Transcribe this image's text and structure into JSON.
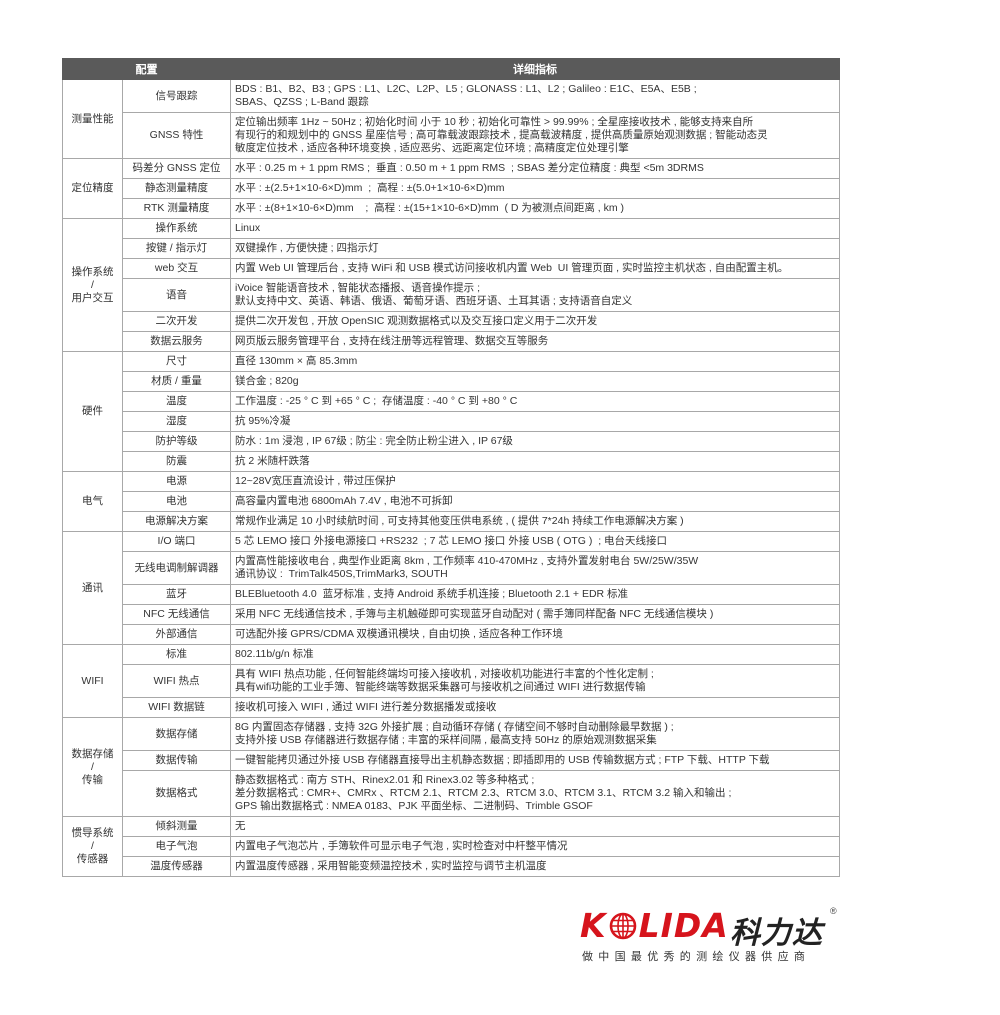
{
  "header": {
    "col_config": "配置",
    "col_detail": "详细指标"
  },
  "groups": [
    {
      "name": "测量性能",
      "rows": [
        {
          "item": "信号跟踪",
          "detail": "BDS : B1、B2、B3 ; GPS : L1、L2C、L2P、L5 ; GLONASS : L1、L2 ; Galileo : E1C、E5A、E5B ;\nSBAS、QZSS ; L-Band 跟踪"
        },
        {
          "item": "GNSS 特性",
          "detail": "定位输出频率 1Hz ~ 50Hz ; 初始化时间 小于 10 秒 ; 初始化可靠性 > 99.99% ; 全星座接收技术 , 能够支持来自所\n有现行的和规划中的 GNSS 星座信号 ; 高可靠载波跟踪技术 , 提高载波精度 , 提供高质量原始观测数据 ; 智能动态灵\n敏度定位技术 , 适应各种环境变换 , 适应恶劣、远距离定位环境 ; 高精度定位处理引擎"
        }
      ]
    },
    {
      "name": "定位精度",
      "rows": [
        {
          "item": "码差分 GNSS 定位",
          "detail": "水平 : 0.25 m + 1 ppm RMS ;  垂直 : 0.50 m + 1 ppm RMS  ; SBAS 差分定位精度 : 典型 <5m 3DRMS"
        },
        {
          "item": "静态测量精度",
          "detail": "水平 : ±(2.5+1×10-6×D)mm  ;  高程 : ±(5.0+1×10-6×D)mm"
        },
        {
          "item": "RTK 测量精度",
          "detail": "水平 : ±(8+1×10-6×D)mm    ;  高程 : ±(15+1×10-6×D)mm  ( D 为被测点间距离 , km )"
        }
      ]
    },
    {
      "name": "操作系统\n/\n用户交互",
      "rows": [
        {
          "item": "操作系统",
          "detail": "Linux"
        },
        {
          "item": "按键 / 指示灯",
          "detail": "双键操作 , 方便快捷 ; 四指示灯"
        },
        {
          "item": "web 交互",
          "detail": "内置 Web UI 管理后台 , 支持 WiFi 和 USB 模式访问接收机内置 Web  UI 管理页面 , 实时监控主机状态 , 自由配置主机。"
        },
        {
          "item": "语音",
          "detail": "iVoice 智能语音技术 , 智能状态播报、语音操作提示 ;\n默认支持中文、英语、韩语、俄语、葡萄牙语、西班牙语、土耳其语 ; 支持语音自定义"
        },
        {
          "item": "二次开发",
          "detail": "提供二次开发包 , 开放 OpenSIC 观测数据格式以及交互接口定义用于二次开发"
        },
        {
          "item": "数据云服务",
          "detail": "网页版云服务管理平台 , 支持在线注册等远程管理、数据交互等服务"
        }
      ]
    },
    {
      "name": "硬件",
      "rows": [
        {
          "item": "尺寸",
          "detail": "直径 130mm × 高 85.3mm"
        },
        {
          "item": "材质 / 重量",
          "detail": "镁合金 ; 820g"
        },
        {
          "item": "温度",
          "detail": "工作温度 : -25 ° C 到 +65 ° C ;  存储温度 : -40 ° C 到 +80 ° C"
        },
        {
          "item": "湿度",
          "detail": "抗 95%冷凝"
        },
        {
          "item": "防护等级",
          "detail": "防水 : 1m 浸泡 , IP 67级 ; 防尘 : 完全防止粉尘进入 , IP 67级"
        },
        {
          "item": "防震",
          "detail": "抗 2 米随杆跌落"
        }
      ]
    },
    {
      "name": "电气",
      "rows": [
        {
          "item": "电源",
          "detail": "12~28V宽压直流设计 , 带过压保护"
        },
        {
          "item": "电池",
          "detail": "高容量内置电池 6800mAh 7.4V , 电池不可拆卸"
        },
        {
          "item": "电源解决方案",
          "detail": "常规作业满足 10 小时续航时间 , 可支持其他变压供电系统 , ( 提供 7*24h 持续工作电源解决方案 )"
        }
      ]
    },
    {
      "name": "通讯",
      "rows": [
        {
          "item": "I/O 端口",
          "detail": "5 芯 LEMO 接口 外接电源接口 +RS232  ; 7 芯 LEMO 接口 外接 USB ( OTG )  ; 电台天线接口"
        },
        {
          "item": "无线电调制解调器",
          "detail": "内置高性能接收电台 , 典型作业距离 8km , 工作频率 410-470MHz , 支持外置发射电台 5W/25W/35W\n通讯协议 :  TrimTalk450S,TrimMark3, SOUTH"
        },
        {
          "item": "蓝牙",
          "detail": "BLEBluetooth 4.0  蓝牙标准 , 支持 Android 系统手机连接 ; Bluetooth 2.1 + EDR 标准"
        },
        {
          "item": "NFC 无线通信",
          "detail": "采用 NFC 无线通信技术 , 手簿与主机触碰即可实现蓝牙自动配对 ( 需手簿同样配备 NFC 无线通信模块 )"
        },
        {
          "item": "外部通信",
          "detail": "可选配外接 GPRS/CDMA 双模通讯模块 , 自由切换 , 适应各种工作环境"
        }
      ]
    },
    {
      "name": "WIFI",
      "rows": [
        {
          "item": "标准",
          "detail": "802.11b/g/n 标准"
        },
        {
          "item": "WIFI 热点",
          "detail": "具有 WIFI 热点功能 , 任何智能终端均可接入接收机 , 对接收机功能进行丰富的个性化定制 ;\n具有wifi功能的工业手簿、智能终端等数据采集器可与接收机之间通过 WIFI 进行数据传输"
        },
        {
          "item": "WIFI 数据链",
          "detail": "接收机可接入 WIFI , 通过 WIFI 进行差分数据播发或接收"
        }
      ]
    },
    {
      "name": "数据存储\n/\n传输",
      "rows": [
        {
          "item": "数据存储",
          "detail": "8G 内置固态存储器 , 支持 32G 外接扩展 ; 自动循环存储 ( 存储空间不够时自动删除最早数据 ) ;\n支持外接 USB 存储器进行数据存储 ; 丰富的采样间隔 , 最高支持 50Hz 的原始观测数据采集"
        },
        {
          "item": "数据传输",
          "detail": "一键智能拷贝通过外接 USB 存储器直接导出主机静态数据 ; 即插即用的 USB 传输数据方式 ; FTP 下载、HTTP 下载"
        },
        {
          "item": "数据格式",
          "detail": "静态数据格式 : 南方 STH、Rinex2.01 和 Rinex3.02 等多种格式 ;\n差分数据格式 : CMR+、CMRx 、RTCM 2.1、RTCM 2.3、RTCM 3.0、RTCM 3.1、RTCM 3.2 输入和输出 ;\nGPS 输出数据格式 : NMEA 0183、PJK 平面坐标、二进制码、Trimble GSOF"
        }
      ]
    },
    {
      "name": "惯导系统\n/\n传感器",
      "rows": [
        {
          "item": "倾斜测量",
          "detail": "无"
        },
        {
          "item": "电子气泡",
          "detail": "内置电子气泡芯片 , 手簿软件可显示电子气泡 , 实时检查对中杆整平情况"
        },
        {
          "item": "温度传感器",
          "detail": "内置温度传感器 , 采用智能变频温控技术 , 实时监控与调节主机温度"
        }
      ]
    }
  ],
  "logo": {
    "brand_left": "K",
    "brand_right": "LIDA",
    "brand_cn": "科力达",
    "registered": "®",
    "tagline": "做中国最优秀的测绘仪器供应商",
    "brand_color": "#d6141c"
  },
  "colors": {
    "header_bg": "#5a5a5a",
    "border": "#a8a8a8"
  }
}
